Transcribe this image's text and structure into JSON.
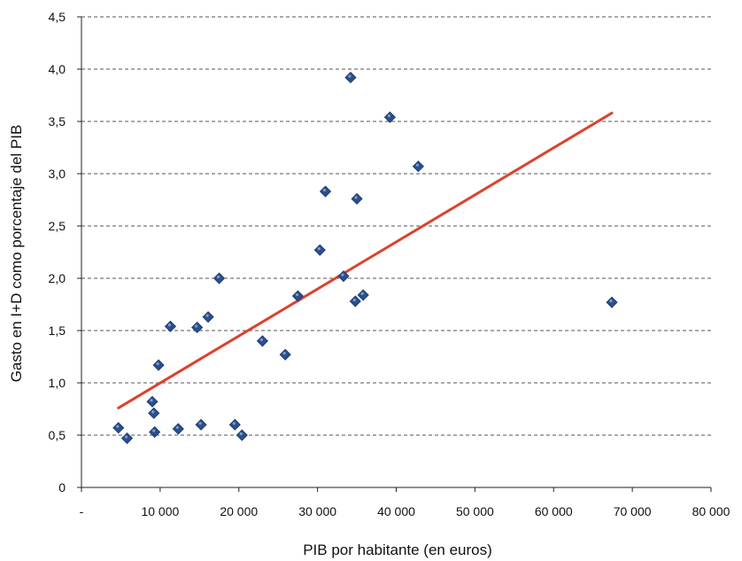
{
  "chart_data": {
    "type": "scatter",
    "title": "",
    "xlabel": "PIB por habitante (en euros)",
    "ylabel": "Gasto en I+D como porcentaje del PIB",
    "xlim": [
      0,
      80000
    ],
    "ylim": [
      0,
      4.5
    ],
    "x_ticks": [
      {
        "value": 0,
        "label": "-"
      },
      {
        "value": 10000,
        "label": "10 000"
      },
      {
        "value": 20000,
        "label": "20 000"
      },
      {
        "value": 30000,
        "label": "30 000"
      },
      {
        "value": 40000,
        "label": "40 000"
      },
      {
        "value": 50000,
        "label": "50 000"
      },
      {
        "value": 60000,
        "label": "60 000"
      },
      {
        "value": 70000,
        "label": "70 000"
      },
      {
        "value": 80000,
        "label": "80 000"
      }
    ],
    "y_ticks": [
      {
        "value": 0,
        "label": "0"
      },
      {
        "value": 0.5,
        "label": "0,5"
      },
      {
        "value": 1.0,
        "label": "1,0"
      },
      {
        "value": 1.5,
        "label": "1,5"
      },
      {
        "value": 2.0,
        "label": "2,0"
      },
      {
        "value": 2.5,
        "label": "2,5"
      },
      {
        "value": 3.0,
        "label": "3,0"
      },
      {
        "value": 3.5,
        "label": "3,5"
      },
      {
        "value": 4.0,
        "label": "4,0"
      },
      {
        "value": 4.5,
        "label": "4,5"
      }
    ],
    "grid": {
      "horizontal": true,
      "vertical": false,
      "style": "dashed"
    },
    "series": [
      {
        "marker": "diamond",
        "color": "#2a4f8f",
        "points": [
          {
            "x": 4700,
            "y": 0.57
          },
          {
            "x": 5800,
            "y": 0.47
          },
          {
            "x": 9000,
            "y": 0.82
          },
          {
            "x": 9200,
            "y": 0.71
          },
          {
            "x": 9300,
            "y": 0.53
          },
          {
            "x": 9800,
            "y": 1.17
          },
          {
            "x": 11300,
            "y": 1.54
          },
          {
            "x": 12300,
            "y": 0.56
          },
          {
            "x": 14700,
            "y": 1.53
          },
          {
            "x": 15200,
            "y": 0.6
          },
          {
            "x": 16100,
            "y": 1.63
          },
          {
            "x": 17500,
            "y": 2.0
          },
          {
            "x": 19500,
            "y": 0.6
          },
          {
            "x": 20400,
            "y": 0.5
          },
          {
            "x": 23000,
            "y": 1.4
          },
          {
            "x": 25900,
            "y": 1.27
          },
          {
            "x": 27500,
            "y": 1.83
          },
          {
            "x": 30300,
            "y": 2.27
          },
          {
            "x": 31000,
            "y": 2.83
          },
          {
            "x": 33300,
            "y": 2.02
          },
          {
            "x": 34200,
            "y": 3.92
          },
          {
            "x": 34800,
            "y": 1.78
          },
          {
            "x": 35000,
            "y": 2.76
          },
          {
            "x": 35800,
            "y": 1.84
          },
          {
            "x": 39200,
            "y": 3.54
          },
          {
            "x": 42800,
            "y": 3.07
          },
          {
            "x": 67400,
            "y": 1.77
          }
        ]
      }
    ],
    "trendline": {
      "type": "linear",
      "color": "#e0402a",
      "x": [
        4700,
        67400
      ],
      "y": [
        0.76,
        3.58
      ]
    }
  }
}
